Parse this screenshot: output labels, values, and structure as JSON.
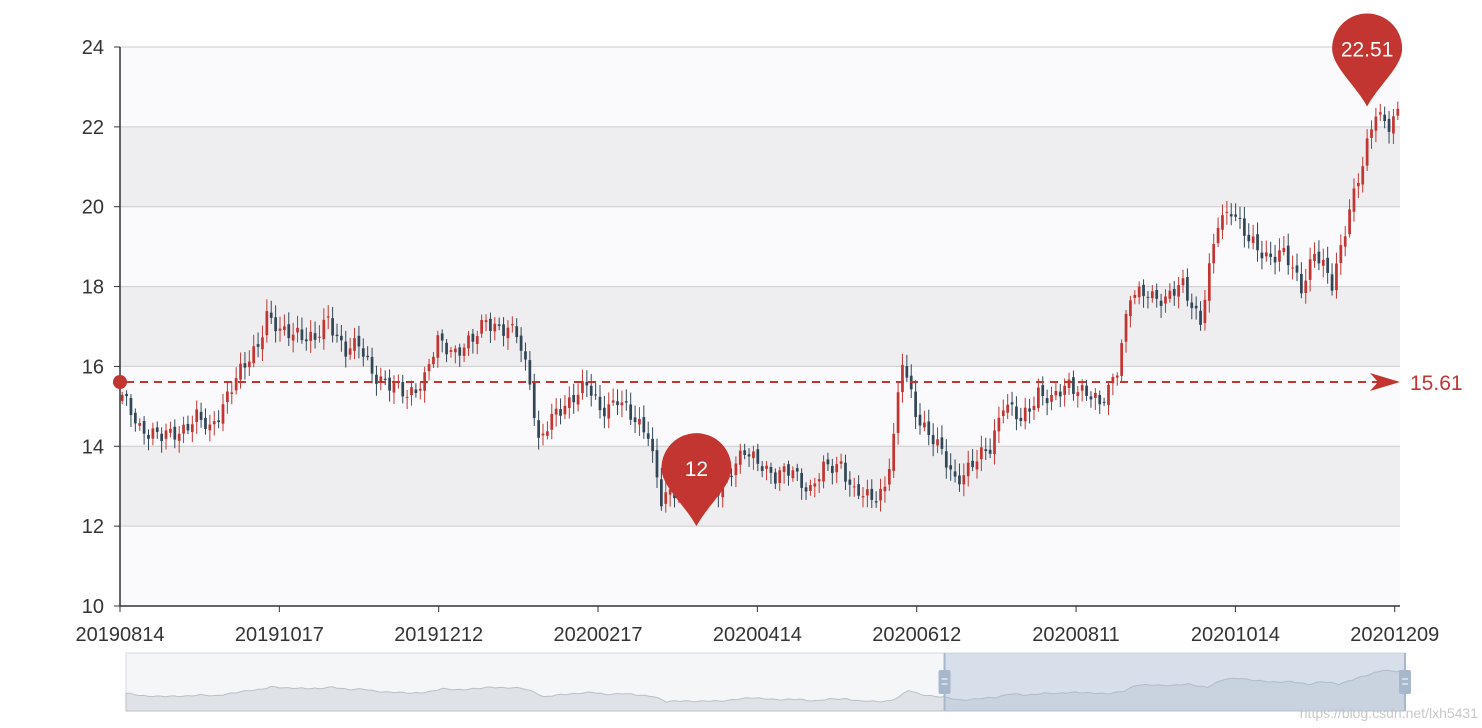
{
  "chart_data": {
    "type": "candlestick",
    "x_tick_labels": [
      "20190814",
      "20191017",
      "20191212",
      "20200217",
      "20200414",
      "20200612",
      "20200811",
      "20201014",
      "20201209"
    ],
    "y_ticks": [
      10,
      12,
      14,
      16,
      18,
      20,
      22,
      24
    ],
    "ylim": [
      10,
      24
    ],
    "grid": "horizontal",
    "split_area": true,
    "close_path": [
      [
        0,
        15.2
      ],
      [
        4,
        14.5
      ],
      [
        9,
        14.2
      ],
      [
        13,
        14.4
      ],
      [
        17,
        14.7
      ],
      [
        20,
        14.4
      ],
      [
        24,
        15.3
      ],
      [
        28,
        16.0
      ],
      [
        31,
        16.6
      ],
      [
        33,
        17.3
      ],
      [
        36,
        16.8
      ],
      [
        40,
        16.9
      ],
      [
        44,
        16.6
      ],
      [
        47,
        17.2
      ],
      [
        51,
        16.4
      ],
      [
        54,
        16.5
      ],
      [
        57,
        15.9
      ],
      [
        61,
        15.5
      ],
      [
        65,
        15.3
      ],
      [
        69,
        15.7
      ],
      [
        72,
        16.6
      ],
      [
        76,
        16.4
      ],
      [
        80,
        16.6
      ],
      [
        83,
        17.2
      ],
      [
        87,
        16.9
      ],
      [
        90,
        16.8
      ],
      [
        93,
        15.7
      ],
      [
        95,
        14.1
      ],
      [
        99,
        14.8
      ],
      [
        103,
        15.3
      ],
      [
        106,
        15.5
      ],
      [
        109,
        14.9
      ],
      [
        113,
        15.2
      ],
      [
        116,
        14.7
      ],
      [
        120,
        14.4
      ],
      [
        123,
        12.6
      ],
      [
        127,
        12.9
      ],
      [
        131,
        12.8
      ],
      [
        135,
        12.8
      ],
      [
        138,
        13.3
      ],
      [
        142,
        13.8
      ],
      [
        146,
        13.6
      ],
      [
        149,
        13.2
      ],
      [
        153,
        13.4
      ],
      [
        157,
        12.9
      ],
      [
        160,
        13.4
      ],
      [
        164,
        13.6
      ],
      [
        167,
        12.8
      ],
      [
        171,
        12.7
      ],
      [
        174,
        13.0
      ],
      [
        176,
        14.2
      ],
      [
        178,
        16.1
      ],
      [
        181,
        14.9
      ],
      [
        184,
        14.3
      ],
      [
        187,
        13.8
      ],
      [
        190,
        13.2
      ],
      [
        194,
        13.5
      ],
      [
        198,
        14.0
      ],
      [
        201,
        15.1
      ],
      [
        205,
        14.6
      ],
      [
        209,
        15.4
      ],
      [
        212,
        15.1
      ],
      [
        216,
        15.6
      ],
      [
        219,
        15.4
      ],
      [
        223,
        15.0
      ],
      [
        227,
        16.0
      ],
      [
        230,
        17.7
      ],
      [
        234,
        17.9
      ],
      [
        238,
        17.6
      ],
      [
        242,
        18.1
      ],
      [
        246,
        17.1
      ],
      [
        250,
        19.6
      ],
      [
        253,
        20.0
      ],
      [
        257,
        19.1
      ],
      [
        261,
        18.8
      ],
      [
        265,
        18.8
      ],
      [
        269,
        18.0
      ],
      [
        272,
        18.9
      ],
      [
        276,
        18.0
      ],
      [
        280,
        20.0
      ],
      [
        283,
        21.0
      ],
      [
        286,
        22.4
      ],
      [
        289,
        22.1
      ],
      [
        291,
        22.3
      ]
    ],
    "candle_count": 292,
    "markers": [
      {
        "type": "max",
        "label": "22.51",
        "value": 22.51,
        "x_index": 284
      },
      {
        "type": "min",
        "label": "12",
        "value": 12,
        "x_index": 131
      }
    ],
    "mark_line": {
      "type": "average",
      "label": "15.61",
      "value": 15.61
    },
    "data_zoom": {
      "start_fraction": 0.64,
      "end_fraction": 1.0
    }
  },
  "colors": {
    "up": "#c23531",
    "down": "#314656",
    "band_light": "#fafafc",
    "band_dark": "#eeeef0",
    "grid_line": "#cccccc",
    "axis": "#333333",
    "marker": "#c23531"
  },
  "watermark": "https://blog.csdn.net/lxh5431"
}
